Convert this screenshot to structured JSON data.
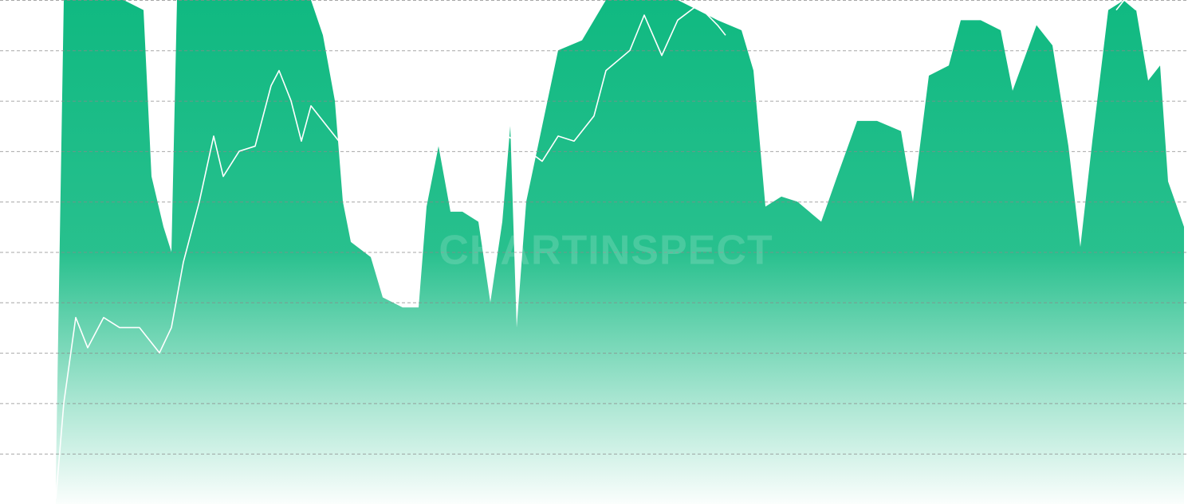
{
  "chart_data": {
    "type": "area-line",
    "watermark": "CHARTINSPECT",
    "xlim": [
      0,
      1490
    ],
    "ylim": [
      0,
      10
    ],
    "yticks": [
      1,
      2,
      3,
      4,
      5,
      6,
      7,
      8,
      9,
      10
    ],
    "grid": true,
    "series": [
      {
        "kind": "area",
        "color": "#10b981",
        "x": [
          70,
          80,
          105,
          130,
          155,
          180,
          190,
          205,
          215,
          222,
          250,
          300,
          350,
          390,
          405,
          420,
          430,
          440,
          465,
          480,
          505,
          525,
          535,
          550,
          565,
          580,
          600,
          615,
          630,
          640,
          648,
          660,
          680,
          700,
          730,
          760,
          800,
          850,
          900,
          930,
          945,
          960,
          980,
          1000,
          1030,
          1050,
          1075,
          1100,
          1130,
          1145,
          1165,
          1190,
          1205,
          1230,
          1255,
          1270,
          1300,
          1320,
          1340,
          1355,
          1370,
          1390,
          1410,
          1425,
          1440,
          1455,
          1465,
          1485
        ],
        "values": [
          0.5,
          10,
          10,
          10,
          10,
          9.8,
          6.5,
          5.5,
          5,
          10,
          10,
          10,
          10,
          10,
          9.3,
          8,
          6,
          5.2,
          4.9,
          4.1,
          3.9,
          3.9,
          5.9,
          7.1,
          5.8,
          5.8,
          5.6,
          4.0,
          5.6,
          7.5,
          3.5,
          6.0,
          7.5,
          9.0,
          9.2,
          10,
          10,
          10,
          9.6,
          9.4,
          8.6,
          5.9,
          6.1,
          6.0,
          5.6,
          6.5,
          7.6,
          7.6,
          7.4,
          6.0,
          8.5,
          8.7,
          9.6,
          9.6,
          9.4,
          8.2,
          9.5,
          9.1,
          7.1,
          5.1,
          7.2,
          9.8,
          10,
          9.8,
          8.4,
          8.7,
          6.4,
          5.5
        ]
      },
      {
        "kind": "line",
        "color": "#ffffff",
        "x": [
          70,
          80,
          95,
          110,
          130,
          150,
          175,
          200,
          215,
          230,
          250,
          268,
          280,
          300,
          320,
          340,
          350,
          365,
          378,
          390,
          410,
          425,
          530,
          637,
          680,
          700,
          720,
          745,
          760,
          790,
          808,
          830,
          850,
          875,
          900,
          910,
          1060,
          1230,
          1240,
          1300,
          1400,
          1410,
          1425
        ],
        "values": [
          0.1,
          2.0,
          3.7,
          3.1,
          3.7,
          3.5,
          3.5,
          3.0,
          3.5,
          4.8,
          6.0,
          7.3,
          6.5,
          7.0,
          7.1,
          8.3,
          8.6,
          8.0,
          7.2,
          7.9,
          7.5,
          7.2,
          null,
          7.3,
          6.8,
          7.3,
          7.2,
          7.7,
          8.6,
          9.0,
          9.7,
          8.9,
          9.6,
          9.9,
          9.5,
          9.3,
          null,
          9.8,
          9.7,
          null,
          9.8,
          10,
          9.8
        ]
      }
    ]
  }
}
